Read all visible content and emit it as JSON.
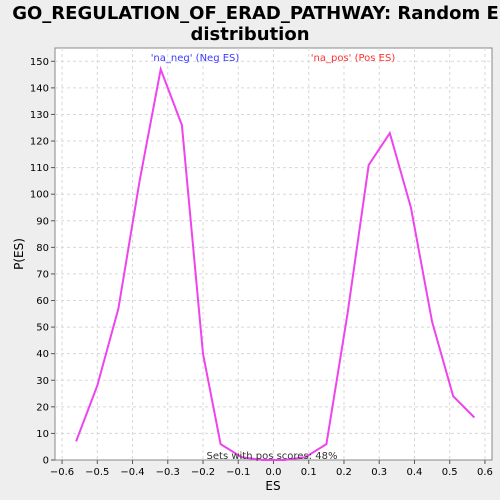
{
  "chart_data": {
    "type": "line",
    "title_lines": [
      "GO_REGULATION_OF_ERAD_PATHWAY: Random ES",
      "distribution"
    ],
    "xlabel": "ES",
    "ylabel": "P(ES)",
    "xlim": [
      -0.62,
      0.62
    ],
    "ylim": [
      0,
      155
    ],
    "x_ticks": [
      -0.6,
      -0.5,
      -0.4,
      -0.3,
      -0.2,
      -0.1,
      0.0,
      0.1,
      0.2,
      0.3,
      0.4,
      0.5,
      0.6
    ],
    "y_ticks": [
      0,
      10,
      20,
      30,
      40,
      50,
      60,
      70,
      80,
      90,
      100,
      110,
      120,
      130,
      140,
      150
    ],
    "grid": true,
    "series": [
      {
        "color": "#ee44ee",
        "x": [
          -0.56,
          -0.5,
          -0.44,
          -0.38,
          -0.32,
          -0.26,
          -0.2,
          -0.15,
          -0.09,
          -0.03,
          0.03,
          0.09,
          0.15,
          0.21,
          0.27,
          0.33,
          0.39,
          0.45,
          0.51,
          0.57
        ],
        "y": [
          7,
          28,
          57,
          105,
          147,
          126,
          40,
          6,
          1,
          0,
          0,
          1,
          6,
          55,
          111,
          123,
          95,
          52,
          24,
          16
        ]
      }
    ],
    "annotations": {
      "neg_label": "'na_neg' (Neg ES)",
      "pos_label": "'na_pos' (Pos ES)",
      "footer": "Sets with pos scores: 48%"
    },
    "colors": {
      "neg": "#3a3aff",
      "pos": "#ff3333",
      "footer": "#333333"
    }
  }
}
